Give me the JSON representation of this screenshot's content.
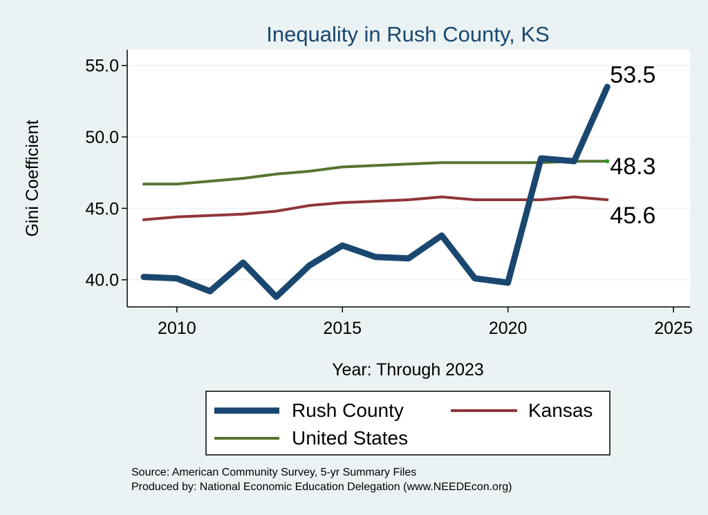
{
  "chart_data": {
    "type": "line",
    "title": "Inequality in Rush County, KS",
    "xlabel": "Year: Through 2023",
    "ylabel": "Gini Coefficient",
    "xlim": [
      2008.5,
      2025.5
    ],
    "ylim": [
      38.1,
      56.1
    ],
    "xticks": [
      2010,
      2015,
      2020,
      2025
    ],
    "yticks": [
      "40.0",
      "45.0",
      "50.0",
      "55.0"
    ],
    "grid": true,
    "legend_position": "bottom",
    "x": [
      2009,
      2010,
      2011,
      2012,
      2013,
      2014,
      2015,
      2016,
      2017,
      2018,
      2019,
      2020,
      2021,
      2022,
      2023
    ],
    "series": [
      {
        "name": "Rush County",
        "color": "#1a476f",
        "width": 9,
        "values": [
          40.2,
          40.1,
          39.2,
          41.2,
          38.8,
          41.0,
          42.4,
          41.6,
          41.5,
          43.1,
          40.1,
          39.8,
          48.5,
          48.3,
          53.5
        ],
        "end_label": "53.5"
      },
      {
        "name": "Kansas",
        "color": "#90353b",
        "width": 4,
        "values": [
          44.2,
          44.4,
          44.5,
          44.6,
          44.8,
          45.2,
          45.4,
          45.5,
          45.6,
          45.8,
          45.6,
          45.6,
          45.6,
          45.8,
          45.6
        ],
        "end_label": "45.6"
      },
      {
        "name": "United States",
        "color": "#55752f",
        "width": 4,
        "values": [
          46.7,
          46.7,
          46.9,
          47.1,
          47.4,
          47.6,
          47.9,
          48.0,
          48.1,
          48.2,
          48.2,
          48.2,
          48.2,
          48.3,
          48.3
        ],
        "end_label": "48.3"
      }
    ],
    "source_lines": [
      "Source: American Community Survey, 5-yr Summary Files",
      "Produced by: National Economic Education Delegation (www.NEEDEcon.org)"
    ]
  },
  "colors": {
    "background": "#eaf2f3",
    "plot_background": "#ffffff",
    "title": "#1a476f",
    "grid": "#eaf2f3"
  }
}
